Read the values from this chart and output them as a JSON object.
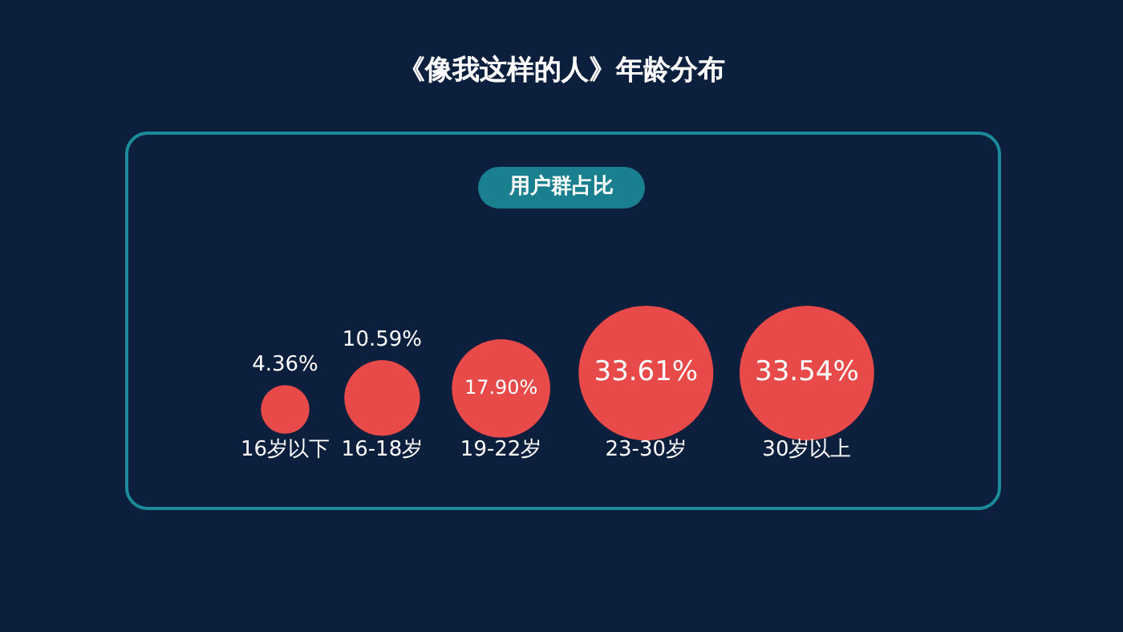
{
  "chart_data": {
    "type": "other",
    "title": "《像我这样的人》年龄分布",
    "subtitle": "用户群占比",
    "categories": [
      "16岁以下",
      "16-18岁",
      "19-22岁",
      "23-30岁",
      "30岁以上"
    ],
    "values": [
      4.36,
      10.59,
      17.9,
      33.61,
      33.54
    ],
    "value_labels": [
      "4.36%",
      "10.59%",
      "17.90%",
      "33.61%",
      "33.54%"
    ],
    "color": "#e84a4a",
    "legend": false
  }
}
